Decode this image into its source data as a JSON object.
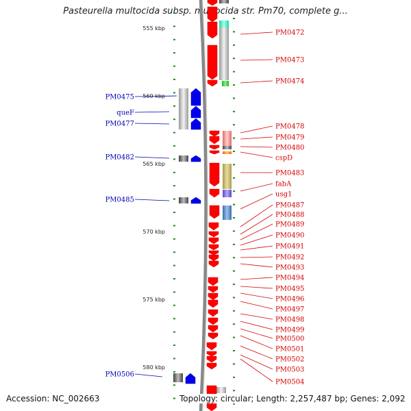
{
  "title": "Pasteurella multocida subsp. multocida str. Pm70, complete g...",
  "accession": "Accession: NC_002663",
  "topology": "Topology: circular; Length: 2,257,487 bp; Genes: 2,092",
  "colors": {
    "forward_gene": "#0000ee",
    "reverse_gene": "#ff0000",
    "axis": "#888888",
    "tick": "#1a8a1a",
    "right_label": "#d40000",
    "left_label": "#0000b4"
  },
  "scale_labels": [
    "555 kbp",
    "560 kbp",
    "565 kbp",
    "570 kbp",
    "575 kbp",
    "580 kbp"
  ],
  "right_genes": [
    "PM0472",
    "PM0473",
    "PM0474",
    "PM0478",
    "PM0479",
    "PM0480",
    "cspD",
    "PM0483",
    "fabA",
    "usg1",
    "PM0487",
    "PM0488",
    "PM0489",
    "PM0490",
    "PM0491",
    "PM0492",
    "PM0493",
    "PM0494",
    "PM0495",
    "PM0496",
    "PM0497",
    "PM0498",
    "PM0499",
    "PM0500",
    "PM0501",
    "PM0502",
    "PM0503",
    "PM0504"
  ],
  "left_genes": [
    "PM0475",
    "queF",
    "PM0477",
    "PM0482",
    "PM0485",
    "PM0506"
  ]
}
